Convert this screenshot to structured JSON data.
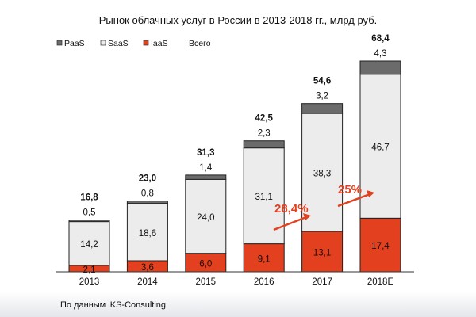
{
  "chart_data": {
    "type": "bar",
    "stacked": true,
    "title": "Рынок облачных услуг в России в 2013-2018 гг., млрд руб.",
    "categories": [
      "2013",
      "2014",
      "2015",
      "2016",
      "2017",
      "2018E"
    ],
    "series": [
      {
        "name": "IaaS",
        "color": "#e2401f",
        "values": [
          2.1,
          3.6,
          6.0,
          9.1,
          13.1,
          17.4
        ],
        "labels": [
          "2,1",
          "3,6",
          "6,0",
          "9,1",
          "13,1",
          "17,4"
        ]
      },
      {
        "name": "SaaS",
        "color": "#ececec",
        "values": [
          14.2,
          18.6,
          24.0,
          31.1,
          38.3,
          46.7
        ],
        "labels": [
          "14,2",
          "18,6",
          "24,0",
          "31,1",
          "38,3",
          "46,7"
        ]
      },
      {
        "name": "PaaS",
        "color": "#6b6b6b",
        "values": [
          0.5,
          0.8,
          1.4,
          2.3,
          3.2,
          4.3
        ],
        "labels": [
          "0,5",
          "0,8",
          "1,4",
          "2,3",
          "3,2",
          "4,3"
        ]
      }
    ],
    "totals": {
      "name": "Всего",
      "values": [
        16.8,
        23.0,
        31.3,
        42.5,
        54.6,
        68.4
      ],
      "labels": [
        "16,8",
        "23,0",
        "31,3",
        "42,5",
        "54,6",
        "68,4"
      ]
    },
    "legend": [
      "PaaS",
      "SaaS",
      "IaaS",
      "Всего"
    ],
    "legend_position": "top-left",
    "annotations": [
      {
        "text": "28,4%",
        "color": "#e2401f",
        "from": "2016",
        "to": "2017"
      },
      {
        "text": "25%",
        "color": "#e2401f",
        "from": "2017",
        "to": "2018E"
      }
    ],
    "ylim": [
      0,
      70
    ],
    "grid": false
  },
  "source": "По данным iKS-Consulting"
}
